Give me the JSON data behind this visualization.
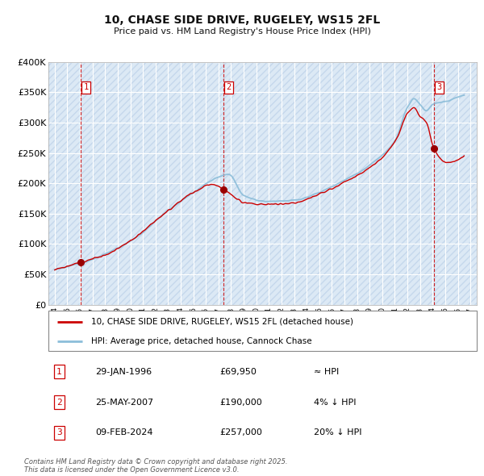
{
  "title_line1": "10, CHASE SIDE DRIVE, RUGELEY, WS15 2FL",
  "title_line2": "Price paid vs. HM Land Registry's House Price Index (HPI)",
  "bg_color": "#dce9f5",
  "grid_color": "#ffffff",
  "red_line_color": "#cc0000",
  "blue_line_color": "#8bbdd9",
  "marker_color": "#990000",
  "vline_color": "#cc0000",
  "ylabel_ticks": [
    "£0",
    "£50K",
    "£100K",
    "£150K",
    "£200K",
    "£250K",
    "£300K",
    "£350K",
    "£400K"
  ],
  "ytick_values": [
    0,
    50000,
    100000,
    150000,
    200000,
    250000,
    300000,
    350000,
    400000
  ],
  "xmin": 1993.5,
  "xmax": 2027.5,
  "ymin": 0,
  "ymax": 400000,
  "sale1_year": 1996.08,
  "sale1_price": 69950,
  "sale1_label": "1",
  "sale1_date": "29-JAN-1996",
  "sale1_price_str": "£69,950",
  "sale1_hpi_rel": "≈ HPI",
  "sale2_year": 2007.4,
  "sale2_price": 190000,
  "sale2_label": "2",
  "sale2_date": "25-MAY-2007",
  "sale2_price_str": "£190,000",
  "sale2_hpi_rel": "4% ↓ HPI",
  "sale3_year": 2024.11,
  "sale3_price": 257000,
  "sale3_label": "3",
  "sale3_date": "09-FEB-2024",
  "sale3_price_str": "£257,000",
  "sale3_hpi_rel": "20% ↓ HPI",
  "legend_label1": "10, CHASE SIDE DRIVE, RUGELEY, WS15 2FL (detached house)",
  "legend_label2": "HPI: Average price, detached house, Cannock Chase",
  "footnote": "Contains HM Land Registry data © Crown copyright and database right 2025.\nThis data is licensed under the Open Government Licence v3.0."
}
